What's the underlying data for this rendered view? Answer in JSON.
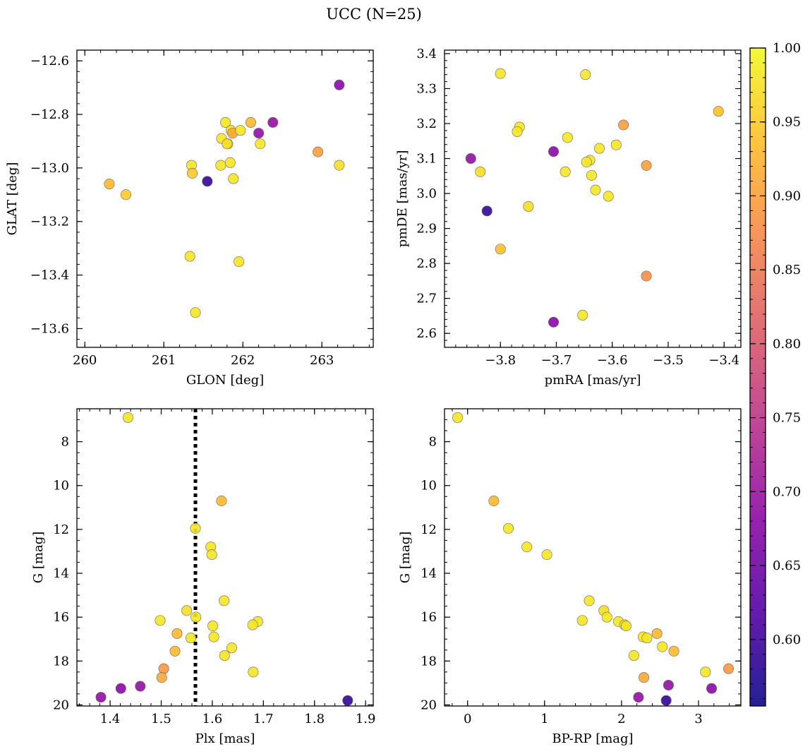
{
  "figure": {
    "title": "UCC (N=25)"
  },
  "colorbar": {
    "cmap": "plasma",
    "vmin": 0.555,
    "vmax": 1.0,
    "ticks": [
      0.6,
      0.65,
      0.7,
      0.75,
      0.8,
      0.85,
      0.9,
      0.95,
      1.0
    ],
    "tick_labels": [
      "0.60",
      "0.65",
      "0.70",
      "0.75",
      "0.80",
      "0.85",
      "0.90",
      "0.95",
      "1.00"
    ],
    "colors": [
      "#0d0887",
      "#5302a3",
      "#8b0aa5",
      "#b83289",
      "#db5c68",
      "#f48849",
      "#febd2a",
      "#f0f921"
    ]
  },
  "chart_data": [
    {
      "type": "scatter",
      "xlabel": "GLON [deg]",
      "ylabel": "GLAT [deg]",
      "xlim": [
        259.9,
        263.65
      ],
      "ylim": [
        -13.67,
        -12.56
      ],
      "invert_y": false,
      "xticks": [
        260,
        261,
        262,
        263
      ],
      "xtick_labels": [
        "260",
        "261",
        "262",
        "263"
      ],
      "yticks": [
        -13.6,
        -13.4,
        -13.2,
        -13.0,
        -12.8,
        -12.6
      ],
      "ytick_labels": [
        "−13.6",
        "−13.4",
        "−13.2",
        "−13.0",
        "−12.8",
        "−12.6"
      ],
      "grid": false,
      "points": [
        {
          "x": 263.22,
          "y": -12.69,
          "c": 0.68
        },
        {
          "x": 262.38,
          "y": -12.83,
          "c": 0.69
        },
        {
          "x": 262.1,
          "y": -12.83,
          "c": 0.93
        },
        {
          "x": 261.78,
          "y": -12.83,
          "c": 0.98
        },
        {
          "x": 261.85,
          "y": -12.86,
          "c": 0.97
        },
        {
          "x": 261.87,
          "y": -12.87,
          "c": 0.91
        },
        {
          "x": 261.97,
          "y": -12.86,
          "c": 0.98
        },
        {
          "x": 262.2,
          "y": -12.87,
          "c": 0.69
        },
        {
          "x": 261.73,
          "y": -12.89,
          "c": 0.98
        },
        {
          "x": 261.81,
          "y": -12.91,
          "c": 0.99
        },
        {
          "x": 261.8,
          "y": -12.91,
          "c": 0.97
        },
        {
          "x": 262.22,
          "y": -12.91,
          "c": 0.98
        },
        {
          "x": 262.95,
          "y": -12.94,
          "c": 0.9
        },
        {
          "x": 263.22,
          "y": -12.99,
          "c": 0.97
        },
        {
          "x": 261.84,
          "y": -12.98,
          "c": 0.98
        },
        {
          "x": 261.72,
          "y": -12.99,
          "c": 0.98
        },
        {
          "x": 261.35,
          "y": -12.99,
          "c": 0.98
        },
        {
          "x": 261.36,
          "y": -13.02,
          "c": 0.95
        },
        {
          "x": 261.88,
          "y": -13.04,
          "c": 0.98
        },
        {
          "x": 261.55,
          "y": -13.05,
          "c": 0.59
        },
        {
          "x": 260.31,
          "y": -13.06,
          "c": 0.93
        },
        {
          "x": 260.52,
          "y": -13.1,
          "c": 0.95
        },
        {
          "x": 261.33,
          "y": -13.33,
          "c": 0.98
        },
        {
          "x": 261.95,
          "y": -13.35,
          "c": 0.98
        },
        {
          "x": 261.4,
          "y": -13.54,
          "c": 0.98
        }
      ]
    },
    {
      "type": "scatter",
      "xlabel": "pmRA [mas/yr]",
      "ylabel": "pmDE [mas/yr]",
      "xlim": [
        -3.9,
        -3.37
      ],
      "ylim": [
        2.56,
        3.41
      ],
      "invert_y": false,
      "xticks": [
        -3.8,
        -3.7,
        -3.6,
        -3.5,
        -3.4
      ],
      "xtick_labels": [
        "−3.8",
        "−3.7",
        "−3.6",
        "−3.5",
        "−3.4"
      ],
      "yticks": [
        2.6,
        2.7,
        2.8,
        2.9,
        3.0,
        3.1,
        3.2,
        3.3,
        3.4
      ],
      "ytick_labels": [
        "2.6",
        "2.7",
        "2.8",
        "2.9",
        "3.0",
        "3.1",
        "3.2",
        "3.3",
        "3.4"
      ],
      "grid": false,
      "points": [
        {
          "x": -3.8,
          "y": 3.343,
          "c": 0.98
        },
        {
          "x": -3.648,
          "y": 3.34,
          "c": 0.98
        },
        {
          "x": -3.41,
          "y": 3.235,
          "c": 0.94
        },
        {
          "x": -3.58,
          "y": 3.196,
          "c": 0.9
        },
        {
          "x": -3.766,
          "y": 3.19,
          "c": 0.98
        },
        {
          "x": -3.77,
          "y": 3.177,
          "c": 0.98
        },
        {
          "x": -3.68,
          "y": 3.16,
          "c": 0.98
        },
        {
          "x": -3.593,
          "y": 3.139,
          "c": 0.98
        },
        {
          "x": -3.623,
          "y": 3.129,
          "c": 0.98
        },
        {
          "x": -3.705,
          "y": 3.12,
          "c": 0.68
        },
        {
          "x": -3.853,
          "y": 3.1,
          "c": 0.69
        },
        {
          "x": -3.64,
          "y": 3.095,
          "c": 0.98
        },
        {
          "x": -3.646,
          "y": 3.09,
          "c": 0.98
        },
        {
          "x": -3.539,
          "y": 3.08,
          "c": 0.9
        },
        {
          "x": -3.836,
          "y": 3.062,
          "c": 0.97
        },
        {
          "x": -3.684,
          "y": 3.062,
          "c": 0.98
        },
        {
          "x": -3.637,
          "y": 3.052,
          "c": 0.98
        },
        {
          "x": -3.63,
          "y": 3.01,
          "c": 0.98
        },
        {
          "x": -3.607,
          "y": 2.992,
          "c": 0.98
        },
        {
          "x": -3.75,
          "y": 2.963,
          "c": 0.97
        },
        {
          "x": -3.824,
          "y": 2.95,
          "c": 0.59
        },
        {
          "x": -3.8,
          "y": 2.841,
          "c": 0.94
        },
        {
          "x": -3.539,
          "y": 2.764,
          "c": 0.88
        },
        {
          "x": -3.653,
          "y": 2.652,
          "c": 0.98
        },
        {
          "x": -3.705,
          "y": 2.632,
          "c": 0.68
        }
      ]
    },
    {
      "type": "scatter",
      "xlabel": "Plx [mas]",
      "ylabel": "G [mag]",
      "xlim": [
        1.335,
        1.915
      ],
      "ylim": [
        6.5,
        20.05
      ],
      "invert_y": true,
      "xticks": [
        1.4,
        1.5,
        1.6,
        1.7,
        1.8,
        1.9
      ],
      "xtick_labels": [
        "1.4",
        "1.5",
        "1.6",
        "1.7",
        "1.8",
        "1.9"
      ],
      "yticks": [
        8,
        10,
        12,
        14,
        16,
        18,
        20
      ],
      "ytick_labels": [
        "8",
        "10",
        "12",
        "14",
        "16",
        "18",
        "20"
      ],
      "grid": false,
      "vline": {
        "x": 1.567,
        "style": "dotted"
      },
      "points": [
        {
          "x": 1.435,
          "y": 6.9,
          "c": 0.98
        },
        {
          "x": 1.618,
          "y": 10.7,
          "c": 0.93
        },
        {
          "x": 1.567,
          "y": 11.95,
          "c": 0.98
        },
        {
          "x": 1.597,
          "y": 12.8,
          "c": 0.98
        },
        {
          "x": 1.599,
          "y": 13.15,
          "c": 0.98
        },
        {
          "x": 1.623,
          "y": 15.25,
          "c": 0.98
        },
        {
          "x": 1.55,
          "y": 15.7,
          "c": 0.97
        },
        {
          "x": 1.568,
          "y": 16.0,
          "c": 0.98
        },
        {
          "x": 1.498,
          "y": 16.15,
          "c": 0.98
        },
        {
          "x": 1.689,
          "y": 16.2,
          "c": 0.98
        },
        {
          "x": 1.679,
          "y": 16.35,
          "c": 0.98
        },
        {
          "x": 1.601,
          "y": 16.4,
          "c": 0.98
        },
        {
          "x": 1.531,
          "y": 16.75,
          "c": 0.93
        },
        {
          "x": 1.603,
          "y": 16.9,
          "c": 0.98
        },
        {
          "x": 1.558,
          "y": 16.95,
          "c": 0.98
        },
        {
          "x": 1.638,
          "y": 17.4,
          "c": 0.98
        },
        {
          "x": 1.527,
          "y": 17.55,
          "c": 0.93
        },
        {
          "x": 1.624,
          "y": 17.75,
          "c": 0.98
        },
        {
          "x": 1.505,
          "y": 18.35,
          "c": 0.89
        },
        {
          "x": 1.68,
          "y": 18.5,
          "c": 0.98
        },
        {
          "x": 1.501,
          "y": 18.75,
          "c": 0.91
        },
        {
          "x": 1.459,
          "y": 19.15,
          "c": 0.69
        },
        {
          "x": 1.421,
          "y": 19.25,
          "c": 0.68
        },
        {
          "x": 1.382,
          "y": 19.65,
          "c": 0.69
        },
        {
          "x": 1.865,
          "y": 19.8,
          "c": 0.59
        }
      ]
    },
    {
      "type": "scatter",
      "xlabel": "BP-RP [mag]",
      "ylabel": "G [mag]",
      "xlim": [
        -0.3,
        3.55
      ],
      "ylim": [
        6.5,
        20.05
      ],
      "invert_y": true,
      "xticks": [
        0,
        1,
        2,
        3
      ],
      "xtick_labels": [
        "0",
        "1",
        "2",
        "3"
      ],
      "yticks": [
        8,
        10,
        12,
        14,
        16,
        18,
        20
      ],
      "ytick_labels": [
        "8",
        "10",
        "12",
        "14",
        "16",
        "18",
        "20"
      ],
      "grid": false,
      "points": [
        {
          "x": -0.13,
          "y": 6.9,
          "c": 0.98
        },
        {
          "x": 0.34,
          "y": 10.7,
          "c": 0.93
        },
        {
          "x": 0.53,
          "y": 11.95,
          "c": 0.98
        },
        {
          "x": 0.77,
          "y": 12.8,
          "c": 0.98
        },
        {
          "x": 1.03,
          "y": 13.15,
          "c": 0.98
        },
        {
          "x": 1.58,
          "y": 15.25,
          "c": 0.98
        },
        {
          "x": 1.77,
          "y": 15.7,
          "c": 0.97
        },
        {
          "x": 1.81,
          "y": 16.0,
          "c": 0.98
        },
        {
          "x": 1.49,
          "y": 16.15,
          "c": 0.98
        },
        {
          "x": 1.96,
          "y": 16.2,
          "c": 0.98
        },
        {
          "x": 2.04,
          "y": 16.35,
          "c": 0.98
        },
        {
          "x": 2.06,
          "y": 16.4,
          "c": 0.98
        },
        {
          "x": 2.46,
          "y": 16.75,
          "c": 0.93
        },
        {
          "x": 2.28,
          "y": 16.9,
          "c": 0.98
        },
        {
          "x": 2.33,
          "y": 16.95,
          "c": 0.98
        },
        {
          "x": 2.53,
          "y": 17.35,
          "c": 0.98
        },
        {
          "x": 2.68,
          "y": 17.55,
          "c": 0.93
        },
        {
          "x": 2.16,
          "y": 17.75,
          "c": 0.98
        },
        {
          "x": 3.39,
          "y": 18.35,
          "c": 0.89
        },
        {
          "x": 3.09,
          "y": 18.5,
          "c": 0.98
        },
        {
          "x": 2.29,
          "y": 18.75,
          "c": 0.91
        },
        {
          "x": 2.61,
          "y": 19.1,
          "c": 0.69
        },
        {
          "x": 3.17,
          "y": 19.25,
          "c": 0.68
        },
        {
          "x": 2.22,
          "y": 19.65,
          "c": 0.69
        },
        {
          "x": 2.58,
          "y": 19.8,
          "c": 0.59
        }
      ]
    }
  ]
}
